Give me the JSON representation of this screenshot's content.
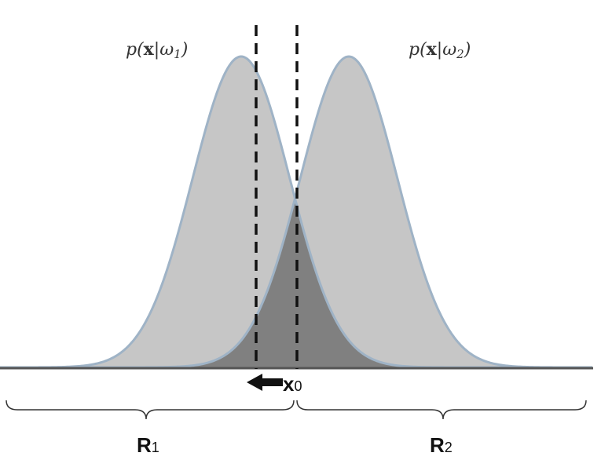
{
  "labels": {
    "class1_density": {
      "prefix": "p(",
      "bold": "x",
      "sep": "|ω",
      "sub": "1",
      "suffix": ")"
    },
    "class2_density": {
      "prefix": "p(",
      "bold": "x",
      "sep": "|ω",
      "sub": "2",
      "suffix": ")"
    },
    "threshold": {
      "main": "x",
      "sub": "0"
    },
    "region1": {
      "main": "R",
      "sub": "1"
    },
    "region2": {
      "main": "R",
      "sub": "2"
    }
  },
  "colors": {
    "curve_fill": "#c6c6c6",
    "curve_stroke": "#9fb3c6",
    "overlap_fill": "#808080",
    "axis": "#555555",
    "dashed": "#111111",
    "arrow": "#111111"
  }
}
